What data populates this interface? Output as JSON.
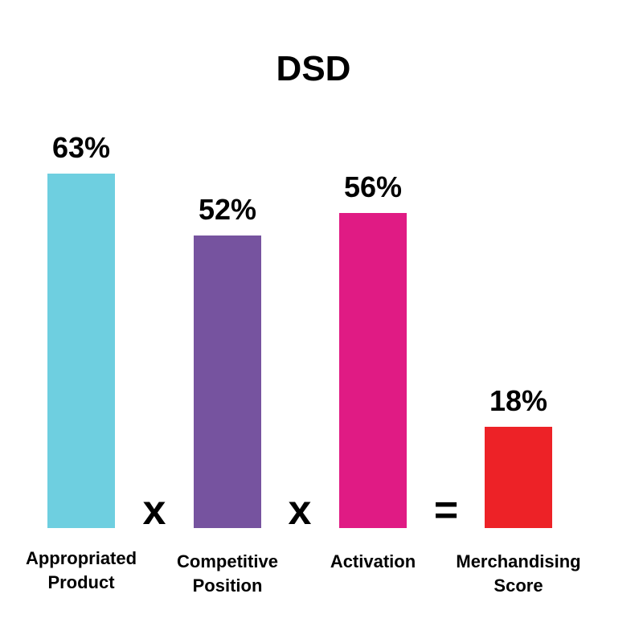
{
  "chart_data": {
    "type": "bar",
    "title": "DSD",
    "categories": [
      [
        "Appropriated",
        "Product"
      ],
      [
        "Competitive",
        "Position"
      ],
      [
        "Activation"
      ],
      [
        "Merchandising",
        "Score"
      ]
    ],
    "values": [
      63,
      52,
      56,
      18
    ],
    "value_labels": [
      "63%",
      "52%",
      "56%",
      "18%"
    ],
    "colors": [
      "#6ecfe0",
      "#76539f",
      "#e01b84",
      "#ed2227"
    ],
    "operators": [
      "x",
      "x",
      "="
    ],
    "ylim": [
      0,
      100
    ],
    "grid": false,
    "legend": "none"
  }
}
